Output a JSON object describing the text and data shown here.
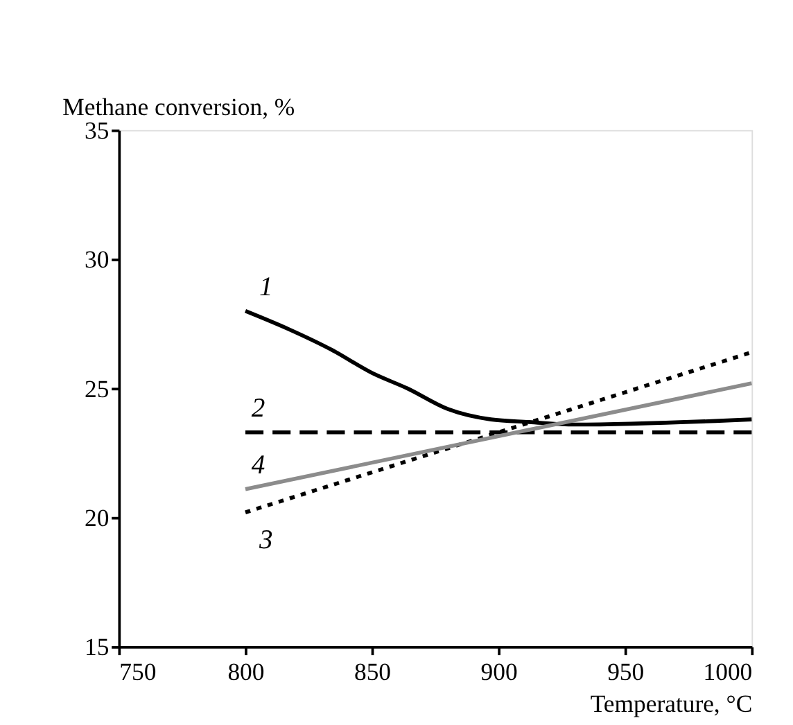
{
  "chart_data": {
    "type": "line",
    "xlabel": "Temperature, °C",
    "ylabel": "Methane conversion, %",
    "xlim": [
      750,
      1000
    ],
    "xticks": [
      750,
      800,
      850,
      900,
      950,
      1000
    ],
    "ylim": [
      15,
      35
    ],
    "yticks": [
      15,
      20,
      25,
      30,
      35
    ],
    "grid": false,
    "marker": "none",
    "series": [
      {
        "name": "1",
        "x": [
          800,
          817,
          834,
          850,
          864,
          880,
          897,
          912,
          930,
          1000
        ],
        "values": [
          28.0,
          27.3,
          26.5,
          25.6,
          25.0,
          24.2,
          23.8,
          23.7,
          23.6,
          23.8
        ],
        "color": "#000000",
        "line_style": "solid"
      },
      {
        "name": "2",
        "x": [
          800,
          1000
        ],
        "values": [
          23.3,
          23.3
        ],
        "color": "#000000",
        "line_style": "dashed"
      },
      {
        "name": "3",
        "x": [
          800,
          1000
        ],
        "values": [
          20.2,
          26.4
        ],
        "color": "#000000",
        "line_style": "dotted"
      },
      {
        "name": "4",
        "x": [
          800,
          1000
        ],
        "values": [
          21.1,
          25.2
        ],
        "color": "#8c8c8c",
        "line_style": "solid"
      }
    ]
  }
}
